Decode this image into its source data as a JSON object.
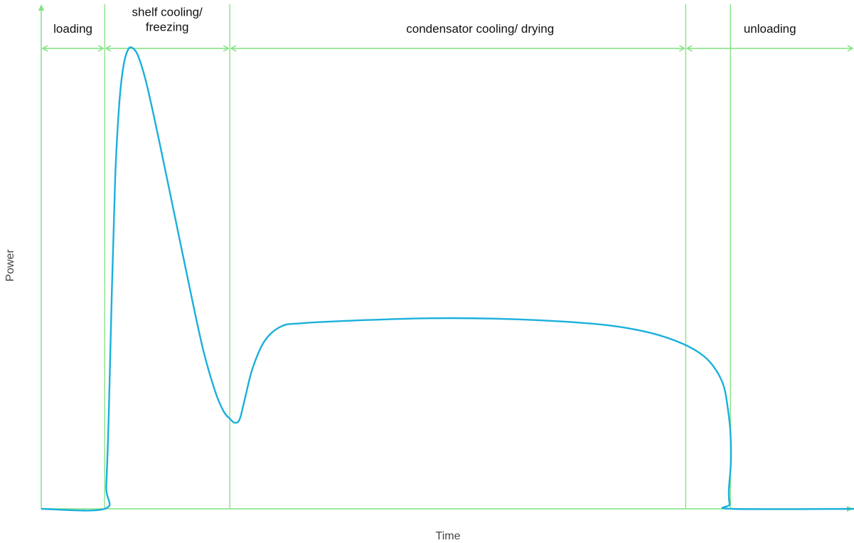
{
  "chart_data": {
    "type": "line",
    "title": "",
    "xlabel": "Time",
    "ylabel": "Power",
    "xlim": [
      0,
      100
    ],
    "ylim": [
      0,
      100
    ],
    "grid": false,
    "colors": {
      "line": "#1ab0dc",
      "axes": "#7ee27e"
    },
    "phases": [
      {
        "label_lines": [
          "loading"
        ],
        "start": 0,
        "end": 7.8,
        "arrow_end": 7.8
      },
      {
        "label_lines": [
          "shelf cooling/",
          "freezing"
        ],
        "start": 7.8,
        "end": 23.2,
        "arrow_end": 23.2
      },
      {
        "label_lines": [
          "condensator cooling/ drying"
        ],
        "start": 23.2,
        "end": 84.8,
        "arrow_end": 79.3
      },
      {
        "label_lines": [
          "unloading"
        ],
        "start": 79.3,
        "end": 100,
        "arrow_end": 100
      }
    ],
    "series": [
      {
        "points": [
          [
            0,
            0
          ],
          [
            7.8,
            0
          ],
          [
            8.0,
            5
          ],
          [
            8.3,
            20
          ],
          [
            8.7,
            48
          ],
          [
            9.1,
            72
          ],
          [
            9.6,
            88
          ],
          [
            10.1,
            96
          ],
          [
            10.7,
            99.8
          ],
          [
            11.3,
            100
          ],
          [
            12.0,
            98
          ],
          [
            13.0,
            92
          ],
          [
            14.5,
            80
          ],
          [
            16.5,
            63
          ],
          [
            18.5,
            46
          ],
          [
            20.0,
            34
          ],
          [
            21.5,
            25
          ],
          [
            22.5,
            21
          ],
          [
            23.2,
            19.6
          ],
          [
            23.8,
            18.7
          ],
          [
            24.4,
            19.4
          ],
          [
            25.0,
            23.5
          ],
          [
            26.0,
            30.5
          ],
          [
            27.5,
            36.5
          ],
          [
            29.5,
            39.6
          ],
          [
            32.0,
            40.3
          ],
          [
            40.0,
            41.0
          ],
          [
            48.0,
            41.4
          ],
          [
            56.0,
            41.3
          ],
          [
            64.0,
            40.7
          ],
          [
            70.0,
            39.8
          ],
          [
            75.0,
            38.2
          ],
          [
            79.0,
            35.8
          ],
          [
            81.5,
            33.2
          ],
          [
            83.0,
            30.2
          ],
          [
            84.0,
            26.5
          ],
          [
            84.5,
            21.5
          ],
          [
            84.8,
            16.5
          ],
          [
            84.85,
            10
          ],
          [
            84.6,
            4
          ],
          [
            84.7,
            1
          ],
          [
            85.0,
            0
          ],
          [
            100,
            0
          ]
        ]
      }
    ]
  }
}
